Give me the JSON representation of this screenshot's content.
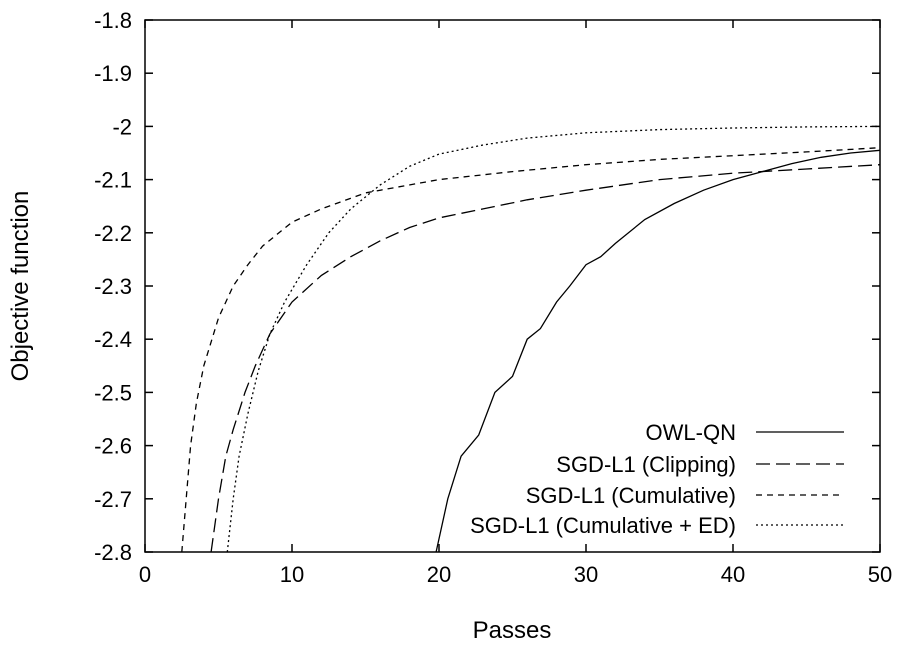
{
  "chart_data": {
    "type": "line",
    "title": "",
    "xlabel": "Passes",
    "ylabel": "Objective function",
    "xlim": [
      0,
      50
    ],
    "ylim": [
      -2.8,
      -1.8
    ],
    "xticks": [
      "0",
      "10",
      "20",
      "30",
      "40",
      "50"
    ],
    "yticks": [
      "-2.8",
      "-2.7",
      "-2.6",
      "-2.5",
      "-2.4",
      "-2.3",
      "-2.2",
      "-2.1",
      "-2",
      "-1.9",
      "-1.8"
    ],
    "grid": false,
    "legend_position": "bottom-right",
    "series": [
      {
        "name": "OWL-QN",
        "dash": "solid",
        "points": [
          [
            19.8,
            -2.8
          ],
          [
            20.6,
            -2.7
          ],
          [
            21.5,
            -2.62
          ],
          [
            22.7,
            -2.58
          ],
          [
            23.8,
            -2.5
          ],
          [
            25.0,
            -2.47
          ],
          [
            26.0,
            -2.4
          ],
          [
            26.9,
            -2.38
          ],
          [
            28.0,
            -2.33
          ],
          [
            28.9,
            -2.3
          ],
          [
            30.0,
            -2.26
          ],
          [
            31.0,
            -2.245
          ],
          [
            32.0,
            -2.22
          ],
          [
            34.0,
            -2.175
          ],
          [
            36.0,
            -2.145
          ],
          [
            38.0,
            -2.12
          ],
          [
            40.0,
            -2.1
          ],
          [
            42.0,
            -2.085
          ],
          [
            44.0,
            -2.07
          ],
          [
            46.0,
            -2.058
          ],
          [
            48.0,
            -2.05
          ],
          [
            50.0,
            -2.045
          ]
        ]
      },
      {
        "name": "SGD-L1 (Clipping)",
        "dash": "long",
        "points": [
          [
            4.5,
            -2.8
          ],
          [
            5.0,
            -2.7
          ],
          [
            5.5,
            -2.62
          ],
          [
            6.0,
            -2.57
          ],
          [
            6.8,
            -2.5
          ],
          [
            7.5,
            -2.45
          ],
          [
            8.5,
            -2.39
          ],
          [
            10.0,
            -2.33
          ],
          [
            12.0,
            -2.28
          ],
          [
            14.0,
            -2.245
          ],
          [
            16.0,
            -2.215
          ],
          [
            18.0,
            -2.19
          ],
          [
            20.0,
            -2.172
          ],
          [
            23.0,
            -2.155
          ],
          [
            26.0,
            -2.138
          ],
          [
            30.0,
            -2.12
          ],
          [
            35.0,
            -2.1
          ],
          [
            40.0,
            -2.088
          ],
          [
            45.0,
            -2.08
          ],
          [
            50.0,
            -2.072
          ]
        ]
      },
      {
        "name": "SGD-L1 (Cumulative)",
        "dash": "short",
        "points": [
          [
            2.5,
            -2.8
          ],
          [
            2.8,
            -2.7
          ],
          [
            3.1,
            -2.6
          ],
          [
            3.5,
            -2.52
          ],
          [
            4.0,
            -2.45
          ],
          [
            5.0,
            -2.36
          ],
          [
            6.0,
            -2.3
          ],
          [
            7.0,
            -2.26
          ],
          [
            8.0,
            -2.225
          ],
          [
            10.0,
            -2.18
          ],
          [
            12.0,
            -2.155
          ],
          [
            15.0,
            -2.125
          ],
          [
            20.0,
            -2.1
          ],
          [
            25.0,
            -2.085
          ],
          [
            30.0,
            -2.072
          ],
          [
            35.0,
            -2.062
          ],
          [
            40.0,
            -2.055
          ],
          [
            45.0,
            -2.048
          ],
          [
            50.0,
            -2.04
          ]
        ]
      },
      {
        "name": "SGD-L1 (Cumulative + ED)",
        "dash": "dotted",
        "points": [
          [
            5.6,
            -2.8
          ],
          [
            6.0,
            -2.7
          ],
          [
            6.4,
            -2.62
          ],
          [
            7.0,
            -2.54
          ],
          [
            7.7,
            -2.46
          ],
          [
            8.5,
            -2.39
          ],
          [
            9.5,
            -2.33
          ],
          [
            11.0,
            -2.26
          ],
          [
            12.5,
            -2.2
          ],
          [
            14.0,
            -2.155
          ],
          [
            16.0,
            -2.11
          ],
          [
            18.0,
            -2.075
          ],
          [
            20.0,
            -2.052
          ],
          [
            23.0,
            -2.035
          ],
          [
            26.0,
            -2.022
          ],
          [
            30.0,
            -2.012
          ],
          [
            35.0,
            -2.006
          ],
          [
            40.0,
            -2.003
          ],
          [
            45.0,
            -2.001
          ],
          [
            50.0,
            -2.0
          ]
        ]
      }
    ]
  }
}
